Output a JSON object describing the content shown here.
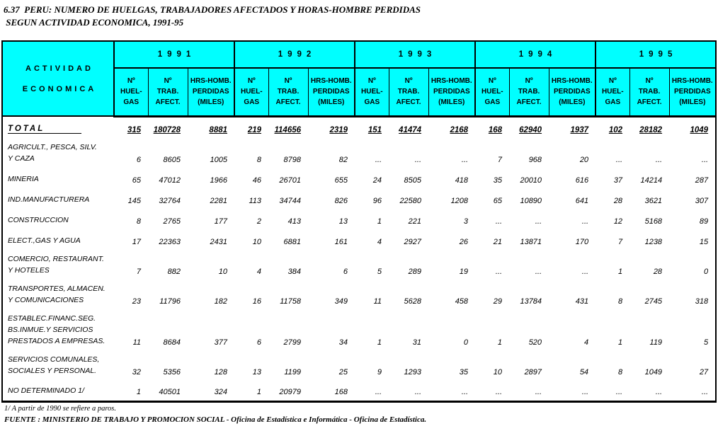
{
  "title": {
    "line1": "6.37  PERU: NUMERO DE HUELGAS, TRABAJADORES AFECTADOS Y HORAS-HOMBRE PERDIDAS",
    "line2": " SEGUN ACTIVIDAD ECONOMICA, 1991-95"
  },
  "colors": {
    "header_background": "#00FFFF",
    "border": "#000000",
    "text": "#000000",
    "page_background": "#FFFFFF"
  },
  "table": {
    "header": {
      "col_label_line1": "ACTIVIDAD",
      "col_label_line2": "ECONOMICA",
      "years": [
        "1991",
        "1992",
        "1993",
        "1994",
        "1995"
      ],
      "subheaders": [
        "Nº\nHUEL-\nGAS",
        "Nº\nTRAB.\nAFECT.",
        "HRS-HOMB.\nPERDIDAS\n(MILES)"
      ]
    },
    "rows": [
      {
        "label": "TOTAL",
        "total": true,
        "values": [
          "315",
          "180728",
          "8881",
          "219",
          "114656",
          "2319",
          "151",
          "41474",
          "2168",
          "168",
          "62940",
          "1937",
          "102",
          "28182",
          "1049"
        ]
      },
      {
        "label": "AGRICULT., PESCA, SILV.\nY CAZA",
        "values": [
          "6",
          "8605",
          "1005",
          "8",
          "8798",
          "82",
          "...",
          "...",
          "...",
          "7",
          "968",
          "20",
          "...",
          "...",
          "..."
        ]
      },
      {
        "label": "MINERIA",
        "values": [
          "65",
          "47012",
          "1966",
          "46",
          "26701",
          "655",
          "24",
          "8505",
          "418",
          "35",
          "20010",
          "616",
          "37",
          "14214",
          "287"
        ]
      },
      {
        "label": "IND.MANUFACTURERA",
        "values": [
          "145",
          "32764",
          "2281",
          "113",
          "34744",
          "826",
          "96",
          "22580",
          "1208",
          "65",
          "10890",
          "641",
          "28",
          "3621",
          "307"
        ]
      },
      {
        "label": "CONSTRUCCION",
        "values": [
          "8",
          "2765",
          "177",
          "2",
          "413",
          "13",
          "1",
          "221",
          "3",
          "...",
          "...",
          "...",
          "12",
          "5168",
          "89"
        ]
      },
      {
        "label": "ELECT.,GAS Y AGUA",
        "values": [
          "17",
          "22363",
          "2431",
          "10",
          "6881",
          "161",
          "4",
          "2927",
          "26",
          "21",
          "13871",
          "170",
          "7",
          "1238",
          "15"
        ]
      },
      {
        "label": "COMERCIO, RESTAURANT.\nY HOTELES",
        "values": [
          "7",
          "882",
          "10",
          "4",
          "384",
          "6",
          "5",
          "289",
          "19",
          "...",
          "...",
          "...",
          "1",
          "28",
          "0"
        ]
      },
      {
        "label": "TRANSPORTES, ALMACEN.\nY COMUNICACIONES",
        "values": [
          "23",
          "11796",
          "182",
          "16",
          "11758",
          "349",
          "11",
          "5628",
          "458",
          "29",
          "13784",
          "431",
          "8",
          "2745",
          "318"
        ]
      },
      {
        "label": "ESTABLEC.FINANC.SEG.\nBS.INMUE.Y SERVICIOS\nPRESTADOS A EMPRESAS.",
        "values": [
          "11",
          "8684",
          "377",
          "6",
          "2799",
          "34",
          "1",
          "31",
          "0",
          "1",
          "520",
          "4",
          "1",
          "119",
          "5"
        ]
      },
      {
        "label": "SERVICIOS COMUNALES,\nSOCIALES Y PERSONAL.",
        "values": [
          "32",
          "5356",
          "128",
          "13",
          "1199",
          "25",
          "9",
          "1293",
          "35",
          "10",
          "2897",
          "54",
          "8",
          "1049",
          "27"
        ]
      },
      {
        "label": "NO DETERMINADO 1/",
        "values": [
          "1",
          "40501",
          "324",
          "1",
          "20979",
          "168",
          "...",
          "...",
          "...",
          "...",
          "...",
          "...",
          "...",
          "...",
          "..."
        ]
      }
    ]
  },
  "footer": {
    "footnote": "1/ A partir de 1990 se refiere a paros.",
    "source": "FUENTE : MINISTERIO DE TRABAJO Y PROMOCION SOCIAL - Oficina de Estadística e Informática - Oficina de Estadística."
  }
}
